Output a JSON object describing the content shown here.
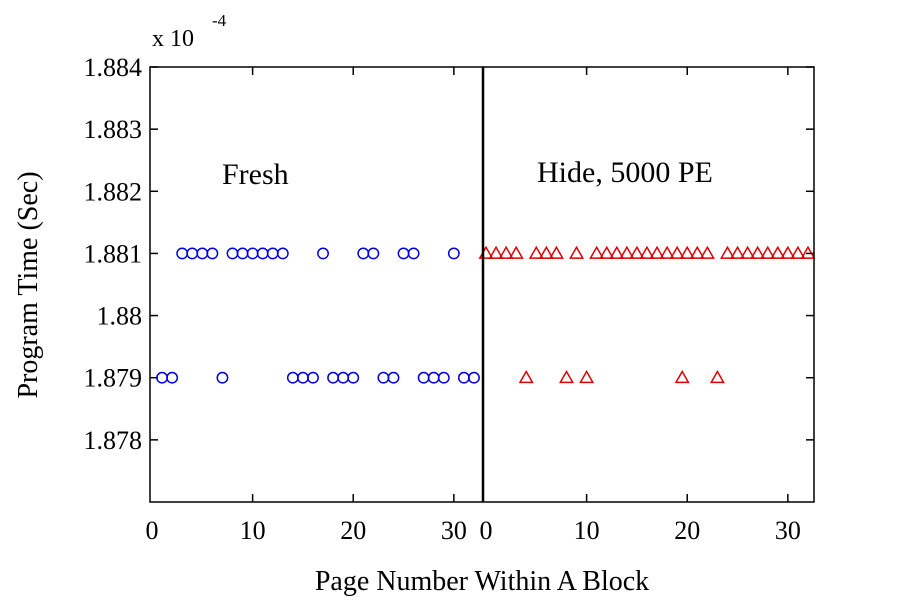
{
  "chart_data": {
    "type": "scatter",
    "xlabel": "Page Number Within A Block",
    "ylabel": "Program Time (Sec)",
    "y_multiplier": {
      "base": "x 10",
      "exponent": "-4"
    },
    "ylim": [
      1.877,
      1.884
    ],
    "y_ticks": [
      "1.878",
      "1.879",
      "1.88",
      "1.881",
      "1.882",
      "1.883",
      "1.884"
    ],
    "panels": [
      {
        "annotation": "Fresh",
        "xlim": [
          0,
          32.5
        ],
        "x_ticks": [
          0,
          10,
          20,
          30
        ],
        "marker": "circle",
        "color": "#0000dd",
        "points": [
          [
            1,
            1.879
          ],
          [
            2,
            1.879
          ],
          [
            3,
            1.881
          ],
          [
            4,
            1.881
          ],
          [
            5,
            1.881
          ],
          [
            6,
            1.881
          ],
          [
            7,
            1.879
          ],
          [
            8,
            1.881
          ],
          [
            9,
            1.881
          ],
          [
            10,
            1.881
          ],
          [
            11,
            1.881
          ],
          [
            12,
            1.881
          ],
          [
            13,
            1.881
          ],
          [
            14,
            1.879
          ],
          [
            15,
            1.879
          ],
          [
            16,
            1.879
          ],
          [
            17,
            1.881
          ],
          [
            18,
            1.879
          ],
          [
            19,
            1.879
          ],
          [
            20,
            1.879
          ],
          [
            21,
            1.881
          ],
          [
            22,
            1.881
          ],
          [
            23,
            1.879
          ],
          [
            24,
            1.879
          ],
          [
            25,
            1.881
          ],
          [
            26,
            1.881
          ],
          [
            27,
            1.879
          ],
          [
            28,
            1.879
          ],
          [
            29,
            1.879
          ],
          [
            30,
            1.881
          ],
          [
            31,
            1.879
          ],
          [
            32,
            1.879
          ]
        ]
      },
      {
        "annotation": "Hide, 5000 PE",
        "xlim": [
          0,
          32.5
        ],
        "x_ticks": [
          0,
          10,
          20,
          30
        ],
        "marker": "triangle",
        "color": "#dd0000",
        "points": [
          [
            0,
            1.881
          ],
          [
            1,
            1.881
          ],
          [
            2,
            1.881
          ],
          [
            3,
            1.881
          ],
          [
            4,
            1.879
          ],
          [
            5,
            1.881
          ],
          [
            6,
            1.881
          ],
          [
            7,
            1.881
          ],
          [
            8,
            1.879
          ],
          [
            9,
            1.881
          ],
          [
            10,
            1.879
          ],
          [
            11,
            1.881
          ],
          [
            12,
            1.881
          ],
          [
            13,
            1.881
          ],
          [
            14,
            1.881
          ],
          [
            15,
            1.881
          ],
          [
            16,
            1.881
          ],
          [
            17,
            1.881
          ],
          [
            18,
            1.881
          ],
          [
            19,
            1.881
          ],
          [
            19.5,
            1.879
          ],
          [
            20,
            1.881
          ],
          [
            21,
            1.881
          ],
          [
            22,
            1.881
          ],
          [
            23,
            1.879
          ],
          [
            24,
            1.881
          ],
          [
            25,
            1.881
          ],
          [
            26,
            1.881
          ],
          [
            27,
            1.881
          ],
          [
            28,
            1.881
          ],
          [
            29,
            1.881
          ],
          [
            30,
            1.881
          ],
          [
            31,
            1.881
          ],
          [
            32,
            1.881
          ]
        ]
      }
    ],
    "grid": false,
    "legend": "none"
  }
}
